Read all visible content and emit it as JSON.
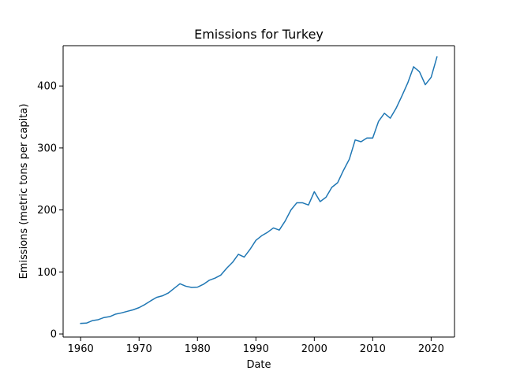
{
  "chart_data": {
    "type": "line",
    "title": "Emissions for Turkey",
    "xlabel": "Date",
    "ylabel": "Emissions (metric tons per capita)",
    "xlim": [
      1957,
      2024
    ],
    "ylim": [
      -5,
      465
    ],
    "xticks": [
      1960,
      1970,
      1980,
      1990,
      2000,
      2010,
      2020
    ],
    "yticks": [
      0,
      100,
      200,
      300,
      400
    ],
    "grid": false,
    "line_color": "#1f77b4",
    "series": [
      {
        "x": [
          1960,
          1961,
          1962,
          1963,
          1964,
          1965,
          1966,
          1967,
          1968,
          1969,
          1970,
          1971,
          1972,
          1973,
          1974,
          1975,
          1976,
          1977,
          1978,
          1979,
          1980,
          1981,
          1982,
          1983,
          1984,
          1985,
          1986,
          1987,
          1988,
          1989,
          1990,
          1991,
          1992,
          1993,
          1994,
          1995,
          1996,
          1997,
          1998,
          1999,
          2000,
          2001,
          2002,
          2003,
          2004,
          2005,
          2006,
          2007,
          2008,
          2009,
          2010,
          2011,
          2012,
          2013,
          2014,
          2015,
          2016,
          2017,
          2018,
          2019,
          2020,
          2021
        ],
        "values": [
          17,
          17.5,
          21.5,
          23,
          26.5,
          28,
          32,
          34,
          36.5,
          39,
          42.5,
          47.5,
          53.5,
          59,
          61.5,
          66,
          73.5,
          81,
          77,
          75,
          75.5,
          80,
          86.5,
          90,
          95,
          106,
          115.5,
          128.5,
          124,
          136.5,
          151,
          158.5,
          164,
          171,
          167.5,
          182,
          200,
          211.5,
          211.5,
          208,
          229.5,
          213.5,
          220.5,
          236.5,
          244,
          264,
          282,
          313,
          310,
          316,
          316,
          343,
          356,
          348,
          364,
          384,
          405,
          431,
          423,
          402,
          414,
          447
        ]
      }
    ]
  }
}
